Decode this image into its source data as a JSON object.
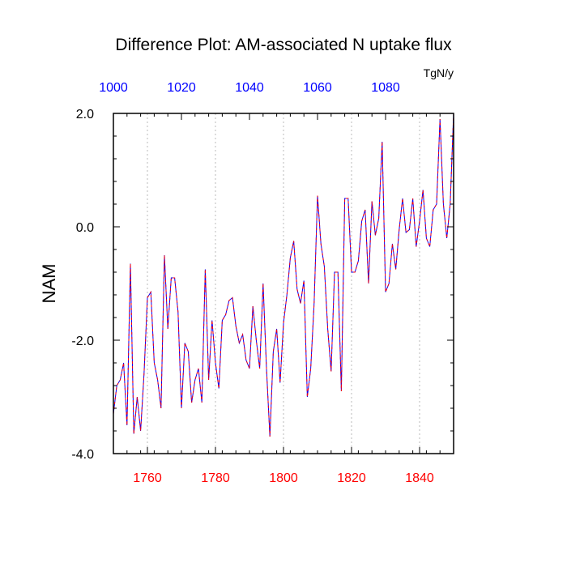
{
  "chart_data": {
    "type": "line",
    "title": "Difference Plot: AM-associated N uptake flux",
    "units_label": "TgN/y",
    "ylabel": "NAM",
    "xlabel": "",
    "xlim": [
      1750,
      1850
    ],
    "ylim": [
      -4.0,
      2.0
    ],
    "x_ticks": [
      1760,
      1780,
      1800,
      1820,
      1840
    ],
    "y_ticks": [
      -4.0,
      -2.0,
      0.0,
      2.0
    ],
    "y_tick_labels": [
      "-4.0",
      "-2.0",
      "0.0",
      "2.0"
    ],
    "top_axis": {
      "ticks": [
        1000,
        1020,
        1040,
        1060,
        1080
      ],
      "range": [
        1000,
        1100
      ]
    },
    "grid": "vertical-dashed",
    "colors": {
      "bottom_axis_labels": "#ff0000",
      "top_axis_labels": "#0000ff",
      "line_primary": "#0000ff",
      "line_secondary": "#ff0000"
    },
    "series": [
      {
        "x": [
          1750,
          1751,
          1752,
          1753,
          1754,
          1755,
          1756,
          1757,
          1758,
          1759,
          1760,
          1761,
          1762,
          1763,
          1764,
          1765,
          1766,
          1767,
          1768,
          1769,
          1770,
          1771,
          1772,
          1773,
          1774,
          1775,
          1776,
          1777,
          1778,
          1779,
          1780,
          1781,
          1782,
          1783,
          1784,
          1785,
          1786,
          1787,
          1788,
          1789,
          1790,
          1791,
          1792,
          1793,
          1794,
          1795,
          1796,
          1797,
          1798,
          1799,
          1800,
          1801,
          1802,
          1803,
          1804,
          1805,
          1806,
          1807,
          1808,
          1809,
          1810,
          1811,
          1812,
          1813,
          1814,
          1815,
          1816,
          1817,
          1818,
          1819,
          1820,
          1821,
          1822,
          1823,
          1824,
          1825,
          1826,
          1827,
          1828,
          1829,
          1830,
          1831,
          1832,
          1833,
          1834,
          1835,
          1836,
          1837,
          1838,
          1839,
          1840,
          1841,
          1842,
          1843,
          1844,
          1845,
          1846,
          1847,
          1848,
          1849,
          1850
        ],
        "values": [
          -3.3,
          -2.8,
          -2.7,
          -2.4,
          -3.5,
          -0.65,
          -3.65,
          -3.0,
          -3.6,
          -2.6,
          -1.25,
          -1.15,
          -2.4,
          -2.7,
          -3.2,
          -0.5,
          -1.8,
          -0.9,
          -0.9,
          -1.5,
          -3.2,
          -2.05,
          -2.2,
          -3.1,
          -2.7,
          -2.5,
          -3.1,
          -0.75,
          -2.7,
          -1.65,
          -2.4,
          -2.85,
          -1.65,
          -1.55,
          -1.3,
          -1.25,
          -1.75,
          -2.05,
          -1.9,
          -2.35,
          -2.5,
          -1.4,
          -2.0,
          -2.5,
          -1.0,
          -2.5,
          -3.7,
          -2.2,
          -1.8,
          -2.75,
          -1.7,
          -1.2,
          -0.55,
          -0.25,
          -1.1,
          -1.35,
          -0.95,
          -3.0,
          -2.5,
          -1.35,
          0.55,
          -0.3,
          -0.7,
          -1.8,
          -2.55,
          -0.8,
          -0.8,
          -2.9,
          0.5,
          0.5,
          -0.8,
          -0.8,
          -0.6,
          0.1,
          0.3,
          -1.0,
          0.45,
          -0.15,
          0.15,
          1.5,
          -1.15,
          -1.0,
          -0.3,
          -0.75,
          -0.05,
          0.5,
          -0.1,
          -0.05,
          0.5,
          -0.35,
          0.1,
          0.65,
          -0.2,
          -0.35,
          0.3,
          0.4,
          1.9,
          0.4,
          -0.2,
          0.4,
          2.0
        ]
      }
    ]
  }
}
